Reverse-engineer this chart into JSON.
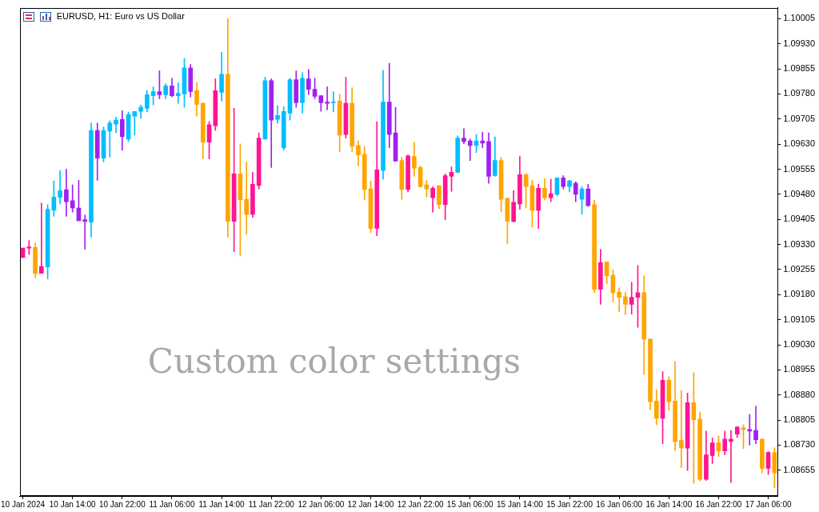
{
  "chart_data": {
    "type": "candlestick",
    "title": "EURUSD, H1: Euro vs US Dollar",
    "annotations": [
      "Custom color settings"
    ],
    "categories": [
      "10 Jan 2024",
      null,
      null,
      null,
      null,
      null,
      null,
      null,
      "10 Jan 14:00",
      null,
      null,
      null,
      null,
      null,
      null,
      null,
      "10 Jan 22:00",
      null,
      null,
      null,
      null,
      null,
      null,
      null,
      "11 Jan 06:00",
      null,
      null,
      null,
      null,
      null,
      null,
      null,
      "11 Jan 14:00",
      null,
      null,
      null,
      null,
      null,
      null,
      null,
      "11 Jan 22:00",
      null,
      null,
      null,
      null,
      null,
      null,
      null,
      "12 Jan 06:00",
      null,
      null,
      null,
      null,
      null,
      null,
      null,
      "12 Jan 14:00",
      null,
      null,
      null,
      null,
      null,
      null,
      null,
      "12 Jan 22:00",
      null,
      null,
      null,
      null,
      null,
      null,
      null,
      "15 Jan 06:00",
      null,
      null,
      null,
      null,
      null,
      null,
      null,
      "15 Jan 14:00",
      null,
      null,
      null,
      null,
      null,
      null,
      null,
      "15 Jan 22:00",
      null,
      null,
      null,
      null,
      null,
      null,
      null,
      "16 Jan 06:00",
      null,
      null,
      null,
      null,
      null,
      null,
      null,
      "16 Jan 14:00",
      null,
      null,
      null,
      null,
      null,
      null,
      null,
      "16 Jan 22:00",
      null,
      null,
      null,
      null,
      null,
      null,
      null,
      "17 Jan 06:00",
      null
    ],
    "ohlc": [
      [
        1.09291,
        1.09319,
        1.09291,
        1.09319
      ],
      [
        1.09319,
        1.09342,
        1.093,
        1.09323
      ],
      [
        1.09321,
        1.09335,
        1.09231,
        1.09244
      ],
      [
        1.09244,
        1.09454,
        1.09244,
        1.09264
      ],
      [
        1.09263,
        1.09449,
        1.09227,
        1.09435
      ],
      [
        1.09432,
        1.0952,
        1.09414,
        1.09472
      ],
      [
        1.09471,
        1.09551,
        1.09451,
        1.09491
      ],
      [
        1.09494,
        1.09555,
        1.09414,
        1.09458
      ],
      [
        1.09461,
        1.09508,
        1.09427,
        1.09439
      ],
      [
        1.09439,
        1.09522,
        1.09401,
        1.09401
      ],
      [
        1.09404,
        1.09418,
        1.09316,
        1.09399
      ],
      [
        1.09397,
        1.09693,
        1.09352,
        1.09671
      ],
      [
        1.09671,
        1.09693,
        1.09522,
        1.09588
      ],
      [
        1.09588,
        1.09681,
        1.09577,
        1.09671
      ],
      [
        1.09669,
        1.097,
        1.09591,
        1.09693
      ],
      [
        1.0969,
        1.09711,
        1.09664,
        1.09702
      ],
      [
        1.09704,
        1.0973,
        1.09612,
        1.09652
      ],
      [
        1.09645,
        1.09726,
        1.09638,
        1.09719
      ],
      [
        1.09714,
        1.09728,
        1.09657,
        1.09728
      ],
      [
        1.09728,
        1.09747,
        1.09707,
        1.0974
      ],
      [
        1.09737,
        1.0979,
        1.09726,
        1.09778
      ],
      [
        1.09775,
        1.09801,
        1.09747,
        1.09787
      ],
      [
        1.09787,
        1.09849,
        1.09766,
        1.09778
      ],
      [
        1.09778,
        1.09811,
        1.09766,
        1.09804
      ],
      [
        1.09804,
        1.09827,
        1.09771,
        1.09775
      ],
      [
        1.09775,
        1.09813,
        1.09752,
        1.09782
      ],
      [
        1.0978,
        1.09886,
        1.0974,
        1.09858
      ],
      [
        1.09858,
        1.09868,
        1.09771,
        1.09787
      ],
      [
        1.0979,
        1.09815,
        1.09714,
        1.09749
      ],
      [
        1.09752,
        1.09754,
        1.09586,
        1.09636
      ],
      [
        1.09636,
        1.09697,
        1.09586,
        1.09688
      ],
      [
        1.09685,
        1.09825,
        1.09671,
        1.0979
      ],
      [
        1.09785,
        1.09905,
        1.09759,
        1.09839
      ],
      [
        1.09839,
        1.10005,
        1.09352,
        1.09399
      ],
      [
        1.09399,
        1.09737,
        1.09309,
        1.09541
      ],
      [
        1.09541,
        1.09631,
        1.09297,
        1.09463
      ],
      [
        1.09465,
        1.09577,
        1.09361,
        1.0942
      ],
      [
        1.0942,
        1.09546,
        1.09411,
        1.0951
      ],
      [
        1.09506,
        1.09664,
        1.09496,
        1.09648
      ],
      [
        1.09645,
        1.0983,
        1.09645,
        1.0982
      ],
      [
        1.0982,
        1.09825,
        1.0956,
        1.09702
      ],
      [
        1.09704,
        1.09745,
        1.09693,
        1.09716
      ],
      [
        1.09619,
        1.09742,
        1.09612,
        1.09728
      ],
      [
        1.09723,
        1.09827,
        1.09702,
        1.09823
      ],
      [
        1.09823,
        1.09849,
        1.0974,
        1.09754
      ],
      [
        1.09754,
        1.09844,
        1.09723,
        1.09827
      ],
      [
        1.09825,
        1.09853,
        1.09778,
        1.09794
      ],
      [
        1.09794,
        1.09827,
        1.09766,
        1.09773
      ],
      [
        1.09775,
        1.09775,
        1.09728,
        1.09754
      ],
      [
        1.09756,
        1.09801,
        1.09733,
        1.09752
      ],
      [
        1.09754,
        1.09787,
        1.09726,
        1.09756
      ],
      [
        1.09759,
        1.0978,
        1.09607,
        1.09657
      ],
      [
        1.09659,
        1.0983,
        1.09648,
        1.09752
      ],
      [
        1.09752,
        1.09799,
        1.09607,
        1.09624
      ],
      [
        1.09626,
        1.0964,
        1.09565,
        1.09598
      ],
      [
        1.096,
        1.09622,
        1.09463,
        1.09494
      ],
      [
        1.09496,
        1.0952,
        1.09366,
        1.09378
      ],
      [
        1.09378,
        1.09697,
        1.09356,
        1.09553
      ],
      [
        1.09551,
        1.09851,
        1.09525,
        1.09756
      ],
      [
        1.09756,
        1.09872,
        1.09619,
        1.09659
      ],
      [
        1.09664,
        1.0974,
        1.09579,
        1.09579
      ],
      [
        1.09581,
        1.09591,
        1.09465,
        1.09494
      ],
      [
        1.09494,
        1.09598,
        1.09487,
        1.09595
      ],
      [
        1.09593,
        1.09636,
        1.09534,
        1.09558
      ],
      [
        1.0956,
        1.09565,
        1.09501,
        1.09503
      ],
      [
        1.09508,
        1.09522,
        1.09472,
        1.09496
      ],
      [
        1.0947,
        1.09503,
        1.09427,
        1.09498
      ],
      [
        1.09506,
        1.09506,
        1.09437,
        1.09449
      ],
      [
        1.09449,
        1.09541,
        1.09404,
        1.09536
      ],
      [
        1.09534,
        1.09562,
        1.09489,
        1.09546
      ],
      [
        1.09546,
        1.09655,
        1.09546,
        1.09648
      ],
      [
        1.09648,
        1.09676,
        1.09631,
        1.09638
      ],
      [
        1.0964,
        1.09645,
        1.09581,
        1.09626
      ],
      [
        1.09626,
        1.09659,
        1.09605,
        1.0964
      ],
      [
        1.0964,
        1.09666,
        1.09619,
        1.09633
      ],
      [
        1.09638,
        1.09664,
        1.09513,
        1.09534
      ],
      [
        1.09536,
        1.09652,
        1.09534,
        1.09581
      ],
      [
        1.09581,
        1.09591,
        1.09427,
        1.09465
      ],
      [
        1.09468,
        1.09468,
        1.09333,
        1.09399
      ],
      [
        1.09399,
        1.09491,
        1.09397,
        1.09456
      ],
      [
        1.09451,
        1.09593,
        1.09435,
        1.09539
      ],
      [
        1.09539,
        1.09543,
        1.09439,
        1.09503
      ],
      [
        1.09506,
        1.09522,
        1.09382,
        1.09432
      ],
      [
        1.09432,
        1.0951,
        1.09378,
        1.09498
      ],
      [
        1.09498,
        1.09527,
        1.09463,
        1.0947
      ],
      [
        1.0947,
        1.09525,
        1.09458,
        1.09482
      ],
      [
        1.0948,
        1.09529,
        1.09475,
        1.09529
      ],
      [
        1.09529,
        1.09536,
        1.09496,
        1.09503
      ],
      [
        1.09503,
        1.09522,
        1.09487,
        1.0952
      ],
      [
        1.09513,
        1.09517,
        1.09458,
        1.0948
      ],
      [
        1.09465,
        1.09503,
        1.0942,
        1.09496
      ],
      [
        1.09496,
        1.0951,
        1.09444,
        1.09446
      ],
      [
        1.09449,
        1.09463,
        1.09186,
        1.09196
      ],
      [
        1.09196,
        1.09316,
        1.09151,
        1.09276
      ],
      [
        1.09278,
        1.09278,
        1.09212,
        1.09236
      ],
      [
        1.09238,
        1.09255,
        1.09158,
        1.09186
      ],
      [
        1.09188,
        1.092,
        1.09129,
        1.09172
      ],
      [
        1.09174,
        1.09188,
        1.0912,
        1.09151
      ],
      [
        1.09151,
        1.09217,
        1.09122,
        1.09172
      ],
      [
        1.09172,
        1.09267,
        1.09082,
        1.09186
      ],
      [
        1.09186,
        1.09236,
        1.08941,
        1.09047
      ],
      [
        1.09047,
        1.09047,
        1.08836,
        1.0886
      ],
      [
        1.08862,
        1.08896,
        1.08791,
        1.0881
      ],
      [
        1.0881,
        1.0895,
        1.08734,
        1.08924
      ],
      [
        1.08924,
        1.08935,
        1.08834,
        1.0886
      ],
      [
        1.08862,
        1.0898,
        1.08714,
        1.0874
      ],
      [
        1.08744,
        1.08893,
        1.08663,
        1.08722
      ],
      [
        1.08721,
        1.08886,
        1.08654,
        1.08857
      ],
      [
        1.08857,
        1.08947,
        1.08616,
        1.08806
      ],
      [
        1.08808,
        1.08829,
        1.08623,
        1.08628
      ],
      [
        1.08628,
        1.08772,
        1.08625,
        1.08701
      ],
      [
        1.08699,
        1.08751,
        1.08675,
        1.08737
      ],
      [
        1.08737,
        1.08758,
        1.08696,
        1.08713
      ],
      [
        1.08713,
        1.08772,
        1.08701,
        1.08748
      ],
      [
        1.08741,
        1.08774,
        1.08618,
        1.08748
      ],
      [
        1.08763,
        1.08786,
        1.08753,
        1.08784
      ],
      [
        1.08782,
        1.08791,
        1.0872,
        1.08777
      ],
      [
        1.08777,
        1.08822,
        1.0873,
        1.08772
      ],
      [
        1.08774,
        1.08846,
        1.08734,
        1.08746
      ],
      [
        1.08748,
        1.08748,
        1.08647,
        1.08661
      ],
      [
        1.08661,
        1.08711,
        1.08642,
        1.08708
      ],
      [
        1.08708,
        1.08722,
        1.08602,
        1.08647
      ]
    ],
    "colors": [
      "#ff1493",
      "#ff1493",
      "#ffa500",
      "#ff1493",
      "#00bfff",
      "#00bfff",
      "#00bfff",
      "#a020f0",
      "#a020f0",
      "#a020f0",
      "#a020f0",
      "#00bfff",
      "#a020f0",
      "#00bfff",
      "#00bfff",
      "#00bfff",
      "#a020f0",
      "#00bfff",
      "#00bfff",
      "#00bfff",
      "#00bfff",
      "#00bfff",
      "#a020f0",
      "#00bfff",
      "#a020f0",
      "#00bfff",
      "#00bfff",
      "#a020f0",
      "#ffa500",
      "#ffa500",
      "#ff1493",
      "#ff1493",
      "#00bfff",
      "#ffa500",
      "#ff1493",
      "#ffa500",
      "#ffa500",
      "#ff1493",
      "#ff1493",
      "#00bfff",
      "#a020f0",
      "#00bfff",
      "#00bfff",
      "#00bfff",
      "#a020f0",
      "#00bfff",
      "#a020f0",
      "#a020f0",
      "#a020f0",
      "#a020f0",
      "#00bfff",
      "#ffa500",
      "#ff1493",
      "#ffa500",
      "#ffa500",
      "#ffa500",
      "#ffa500",
      "#ff1493",
      "#00bfff",
      "#a020f0",
      "#a020f0",
      "#ffa500",
      "#ff1493",
      "#ffa500",
      "#ffa500",
      "#ffa500",
      "#ff1493",
      "#ffa500",
      "#ff1493",
      "#ff1493",
      "#00bfff",
      "#a020f0",
      "#a020f0",
      "#00bfff",
      "#a020f0",
      "#a020f0",
      "#00bfff",
      "#ffa500",
      "#ffa500",
      "#ff1493",
      "#ff1493",
      "#ffa500",
      "#ffa500",
      "#ff1493",
      "#ffa500",
      "#ff1493",
      "#00bfff",
      "#a020f0",
      "#00bfff",
      "#a020f0",
      "#00bfff",
      "#a020f0",
      "#ffa500",
      "#ff1493",
      "#ffa500",
      "#ffa500",
      "#ffa500",
      "#ffa500",
      "#ff1493",
      "#ff1493",
      "#ffa500",
      "#ffa500",
      "#ffa500",
      "#ff1493",
      "#ffa500",
      "#ffa500",
      "#ffa500",
      "#ff1493",
      "#ffa500",
      "#ffa500",
      "#ff1493",
      "#ff1493",
      "#ffa500",
      "#ff1493",
      "#ff1493",
      "#ff1493",
      "#ffa500",
      "#a020f0",
      "#a020f0",
      "#ffa500",
      "#ff1493",
      "#ffa500"
    ],
    "ylim": [
      1.08578,
      1.10038
    ],
    "yticks": [
      1.10005,
      {
        "value": 1.0993,
        "label": "1.09930"
      },
      1.09855,
      {
        "value": 1.0978,
        "label": "1.09780"
      },
      1.09705,
      {
        "value": 1.0963,
        "label": "1.09630"
      },
      1.09555,
      {
        "value": 1.0948,
        "label": "1.09480"
      },
      1.09405,
      {
        "value": 1.0933,
        "label": "1.09330"
      },
      1.09255,
      {
        "value": 1.0918,
        "label": "1.09180"
      },
      1.09105,
      {
        "value": 1.0903,
        "label": "1.09030"
      },
      1.08955,
      {
        "value": 1.0888,
        "label": "1.08880"
      },
      1.08805,
      {
        "value": 1.0873,
        "label": "1.08730"
      },
      1.08655
    ]
  }
}
